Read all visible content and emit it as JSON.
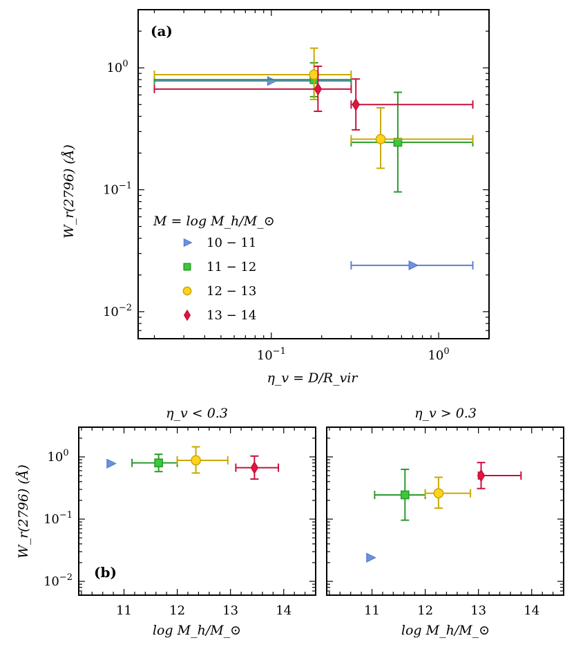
{
  "colors": {
    "10-11": "#5b7fd1",
    "11-12": "#2a9a2a",
    "12-13": "#c8a800",
    "13-14": "#c8103c"
  },
  "fills": {
    "10-11": "#6f92e0",
    "11-12": "#3cc83c",
    "12-13": "#ffd21f",
    "13-14": "#e0183c"
  },
  "labels": {
    "panel_a": "(a)",
    "panel_b": "(b)",
    "ylabel": "W_r(2796) (Å)",
    "xlabel_a": "η_v = D/R_vir",
    "xlabel_b": "log M_h/M_⊙",
    "title_b_left": "η_v < 0.3",
    "title_b_right": "η_v > 0.3",
    "legend_title": "M = log M_h/M_⊙"
  },
  "chart_data": [
    {
      "type": "scatter",
      "panel": "(a)",
      "xscale": "log",
      "yscale": "log",
      "xlim": [
        0.016,
        2.0
      ],
      "ylim": [
        0.006,
        3.0
      ],
      "xticks": [
        "10^-1",
        "10^0"
      ],
      "yticks": [
        "10^-2",
        "10^-1",
        "10^0"
      ],
      "legend_placement": "center-left",
      "series": [
        {
          "name": "10 − 11",
          "marker": "triangle-right",
          "color_key": "10-11",
          "points": [
            {
              "x": 0.1,
              "y": 0.78,
              "xerr": [
                0.02,
                0.3
              ],
              "yerr": null
            },
            {
              "x": 0.7,
              "y": 0.024,
              "xerr": [
                0.3,
                1.6
              ],
              "yerr": null
            }
          ]
        },
        {
          "name": "11 − 12",
          "marker": "square",
          "color_key": "11-12",
          "points": [
            {
              "x": 0.18,
              "y": 0.8,
              "xerr": [
                0.02,
                0.3
              ],
              "yerr": [
                0.58,
                1.1
              ]
            },
            {
              "x": 0.57,
              "y": 0.245,
              "xerr": [
                0.3,
                1.6
              ],
              "yerr": [
                0.096,
                0.63
              ]
            }
          ]
        },
        {
          "name": "12 − 13",
          "marker": "circle",
          "color_key": "12-13",
          "points": [
            {
              "x": 0.18,
              "y": 0.88,
              "xerr": [
                0.02,
                0.3
              ],
              "yerr": [
                0.55,
                1.45
              ]
            },
            {
              "x": 0.45,
              "y": 0.26,
              "xerr": [
                0.3,
                1.6
              ],
              "yerr": [
                0.15,
                0.47
              ]
            }
          ]
        },
        {
          "name": "13 − 14",
          "marker": "diamond",
          "color_key": "13-14",
          "points": [
            {
              "x": 0.19,
              "y": 0.67,
              "xerr": [
                0.02,
                0.3
              ],
              "yerr": [
                0.44,
                1.03
              ]
            },
            {
              "x": 0.32,
              "y": 0.5,
              "xerr": [
                0.3,
                1.6
              ],
              "yerr": [
                0.31,
                0.81
              ]
            }
          ]
        }
      ]
    },
    {
      "type": "scatter",
      "panel": "(b) left",
      "title": "η_v < 0.3",
      "xscale": "linear",
      "yscale": "log",
      "xlim": [
        10.15,
        14.6
      ],
      "ylim": [
        0.006,
        3.0
      ],
      "xticks": [
        "11",
        "12",
        "13",
        "14"
      ],
      "yticks": [
        "10^-2",
        "10^-1",
        "10^0"
      ],
      "series": [
        {
          "name": "10 − 11",
          "marker": "triangle-right",
          "color_key": "10-11",
          "points": [
            {
              "x": 10.75,
              "y": 0.78,
              "xerr": null,
              "yerr": null
            }
          ]
        },
        {
          "name": "11 − 12",
          "marker": "square",
          "color_key": "11-12",
          "points": [
            {
              "x": 11.65,
              "y": 0.8,
              "xerr": [
                11.15,
                12.0
              ],
              "yerr": [
                0.58,
                1.1
              ]
            }
          ]
        },
        {
          "name": "12 − 13",
          "marker": "circle",
          "color_key": "12-13",
          "points": [
            {
              "x": 12.35,
              "y": 0.88,
              "xerr": [
                12.0,
                12.95
              ],
              "yerr": [
                0.55,
                1.45
              ]
            }
          ]
        },
        {
          "name": "13 − 14",
          "marker": "diamond",
          "color_key": "13-14",
          "points": [
            {
              "x": 13.45,
              "y": 0.67,
              "xerr": [
                13.1,
                13.9
              ],
              "yerr": [
                0.44,
                1.03
              ]
            }
          ]
        }
      ]
    },
    {
      "type": "scatter",
      "panel": "(b) right",
      "title": "η_v > 0.3",
      "xscale": "linear",
      "yscale": "log",
      "xlim": [
        10.15,
        14.6
      ],
      "ylim": [
        0.006,
        3.0
      ],
      "xticks": [
        "11",
        "12",
        "13",
        "14"
      ],
      "yticks": [
        "10^-2",
        "10^-1",
        "10^0"
      ],
      "series": [
        {
          "name": "10 − 11",
          "marker": "triangle-right",
          "color_key": "10-11",
          "points": [
            {
              "x": 10.97,
              "y": 0.024,
              "xerr": null,
              "yerr": null
            }
          ]
        },
        {
          "name": "11 − 12",
          "marker": "square",
          "color_key": "11-12",
          "points": [
            {
              "x": 11.62,
              "y": 0.245,
              "xerr": [
                11.05,
                12.0
              ],
              "yerr": [
                0.096,
                0.63
              ]
            }
          ]
        },
        {
          "name": "12 − 13",
          "marker": "circle",
          "color_key": "12-13",
          "points": [
            {
              "x": 12.25,
              "y": 0.26,
              "xerr": [
                12.0,
                12.85
              ],
              "yerr": [
                0.15,
                0.47
              ]
            }
          ]
        },
        {
          "name": "13 − 14",
          "marker": "diamond",
          "color_key": "13-14",
          "points": [
            {
              "x": 13.05,
              "y": 0.5,
              "xerr": [
                13.0,
                13.8
              ],
              "yerr": [
                0.31,
                0.81
              ]
            }
          ]
        }
      ]
    }
  ]
}
